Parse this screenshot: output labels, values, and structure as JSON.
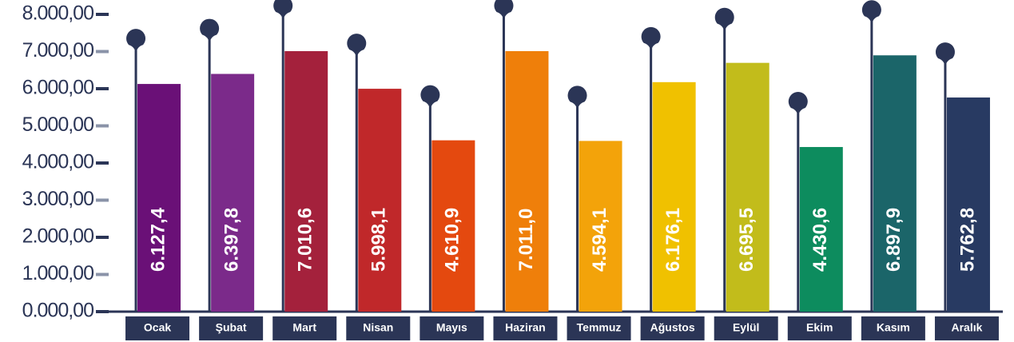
{
  "chart_data": {
    "type": "bar",
    "categories": [
      "Ocak",
      "Şubat",
      "Mart",
      "Nisan",
      "Mayıs",
      "Haziran",
      "Temmuz",
      "Ağustos",
      "Eylül",
      "Ekim",
      "Kasım",
      "Aralık"
    ],
    "values": [
      6127.4,
      6397.8,
      7010.6,
      5998.1,
      4610.9,
      7011.0,
      4594.1,
      6176.1,
      6695.5,
      4430.6,
      6897.9,
      5762.8
    ],
    "value_labels": [
      "6.127,4",
      "6.397,8",
      "7.010,6",
      "5.998,1",
      "4.610,9",
      "7.011,0",
      "4.594,1",
      "6.176,1",
      "6.695,5",
      "4.430,6",
      "6.897,9",
      "5.762,8"
    ],
    "colors": [
      "#6a1077",
      "#7b2a8a",
      "#a4213c",
      "#c0282a",
      "#e4490f",
      "#ef7f0a",
      "#f3a30a",
      "#f0c100",
      "#c2bc1b",
      "#0d8c5e",
      "#1b6569",
      "#283a62"
    ],
    "ylim": [
      0,
      8000
    ],
    "yticks": [
      {
        "value": 0,
        "label": "0.000,00"
      },
      {
        "value": 1000,
        "label": "1.000,00"
      },
      {
        "value": 2000,
        "label": "2.000,00"
      },
      {
        "value": 3000,
        "label": "3.000,00"
      },
      {
        "value": 4000,
        "label": "4.000,00"
      },
      {
        "value": 5000,
        "label": "5.000,00"
      },
      {
        "value": 6000,
        "label": "6.000,00"
      },
      {
        "value": 7000,
        "label": "7.000,00"
      },
      {
        "value": 8000,
        "label": "8.000,00"
      }
    ]
  }
}
